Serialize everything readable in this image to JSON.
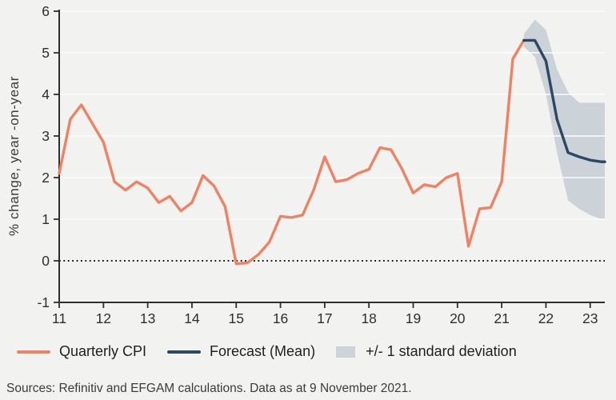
{
  "figure": {
    "ylabel": "% change, year -on-year",
    "footer": "Sources: Refinitiv and EFGAM calculations. Data as at 9 November 2021.",
    "background": "#f2f2f0",
    "gridline_color": "#ffffff",
    "axis_color": "#2e2e2e"
  },
  "legend": {
    "items": [
      {
        "swatch": "line",
        "color": "#ef8262",
        "label": "Quarterly CPI"
      },
      {
        "swatch": "line",
        "color": "#2d4766",
        "label": "Forecast (Mean)"
      },
      {
        "swatch": "box",
        "color": "#ccd3d8",
        "label": "+/- 1 standard deviation"
      }
    ]
  },
  "chart_data": {
    "type": "line",
    "title": "",
    "xlabel": "",
    "ylabel": "% change, year -on-year",
    "xlim": [
      11,
      23.33
    ],
    "ylim": [
      -1,
      6
    ],
    "xticks": [
      11,
      12,
      13,
      14,
      15,
      16,
      17,
      18,
      19,
      20,
      21,
      22,
      23
    ],
    "yticks": [
      -1,
      0,
      1,
      2,
      3,
      4,
      5,
      6
    ],
    "grid": "horizontal-white",
    "zero_line": "dotted-black",
    "legend_position": "bottom",
    "series": [
      {
        "name": "Quarterly CPI",
        "color": "#ef8262",
        "x": [
          11,
          11.25,
          11.5,
          11.75,
          12,
          12.25,
          12.5,
          12.75,
          13,
          13.25,
          13.5,
          13.75,
          14,
          14.25,
          14.5,
          14.75,
          15,
          15.25,
          15.5,
          15.75,
          16,
          16.25,
          16.5,
          16.75,
          17,
          17.25,
          17.5,
          17.75,
          18,
          18.25,
          18.5,
          18.75,
          19,
          19.25,
          19.5,
          19.75,
          20,
          20.25,
          20.5,
          20.75,
          21,
          21.25,
          21.5
        ],
        "y": [
          2.1,
          3.4,
          3.75,
          3.3,
          2.85,
          1.9,
          1.7,
          1.9,
          1.75,
          1.4,
          1.55,
          1.2,
          1.4,
          2.05,
          1.8,
          1.3,
          -0.07,
          -0.05,
          0.15,
          0.45,
          1.07,
          1.04,
          1.1,
          1.7,
          2.5,
          1.9,
          1.95,
          2.1,
          2.2,
          2.72,
          2.67,
          2.2,
          1.63,
          1.83,
          1.78,
          2.0,
          2.1,
          0.35,
          1.25,
          1.28,
          1.9,
          4.85,
          5.3
        ]
      },
      {
        "name": "Forecast (Mean)",
        "color": "#2d4766",
        "x": [
          21.5,
          21.75,
          22,
          22.25,
          22.5,
          22.75,
          23,
          23.25,
          23.33
        ],
        "y": [
          5.3,
          5.3,
          4.8,
          3.4,
          2.6,
          2.5,
          2.42,
          2.38,
          2.38
        ]
      }
    ],
    "band": {
      "name": "+/- 1 standard deviation",
      "color": "#ccd3d8",
      "x": [
        21.5,
        21.75,
        22,
        22.25,
        22.5,
        22.75,
        23,
        23.25,
        23.33
      ],
      "upper": [
        5.45,
        5.8,
        5.55,
        4.6,
        4.05,
        3.8,
        3.8,
        3.8,
        3.8
      ],
      "lower": [
        5.15,
        4.9,
        4.0,
        2.6,
        1.45,
        1.25,
        1.1,
        1.0,
        1.0
      ]
    }
  }
}
